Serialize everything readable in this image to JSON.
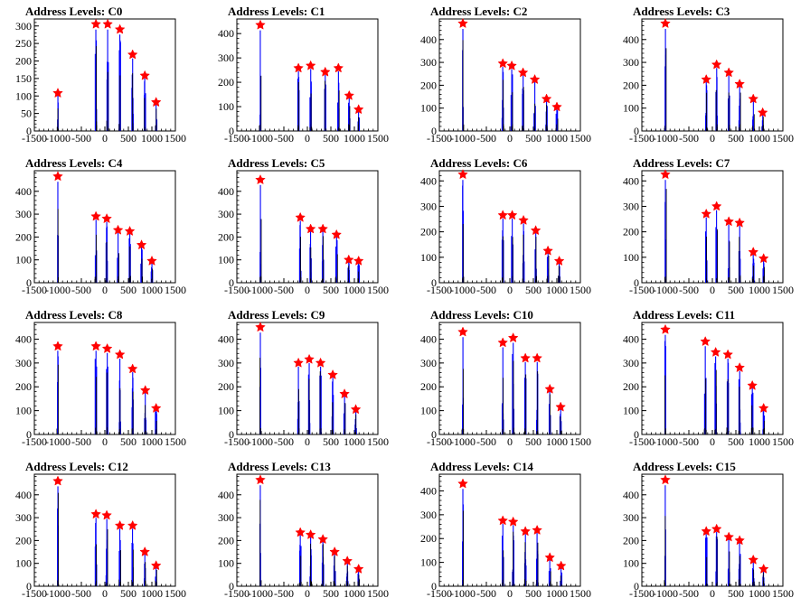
{
  "colors": {
    "histogram": "#0000ff",
    "overlay": "#000000",
    "marker": "#ff0000"
  },
  "marker_icon": "red-star-marker",
  "x_ticks": [
    -1500,
    -1000,
    -500,
    0,
    500,
    1000,
    1500
  ],
  "x_tick_labels": [
    "-1500",
    "-1000",
    "-500",
    "0",
    "500",
    "1000",
    "1500"
  ],
  "xlim": [
    -1500,
    1500
  ],
  "chart_data": [
    {
      "type": "bar",
      "title": "Address Levels: C0",
      "xlabel": "",
      "ylabel": "",
      "xlim": [
        -1500,
        1500
      ],
      "ylim": [
        0,
        320
      ],
      "y_ticks": [
        0,
        50,
        100,
        150,
        200,
        250,
        300
      ],
      "y_tick_labels": [
        "0",
        "50",
        "100",
        "150",
        "200",
        "250",
        "300"
      ],
      "peaks": [
        {
          "x": -1000,
          "y": 108
        },
        {
          "x": -190,
          "y": 305
        },
        {
          "x": 60,
          "y": 305
        },
        {
          "x": 320,
          "y": 290
        },
        {
          "x": 590,
          "y": 218
        },
        {
          "x": 850,
          "y": 158
        },
        {
          "x": 1090,
          "y": 82
        }
      ]
    },
    {
      "type": "bar",
      "title": "Address Levels: C1",
      "xlabel": "",
      "ylabel": "",
      "xlim": [
        -1500,
        1500
      ],
      "ylim": [
        0,
        460
      ],
      "y_ticks": [
        0,
        100,
        200,
        300,
        400
      ],
      "y_tick_labels": [
        "0",
        "100",
        "200",
        "300",
        "400"
      ],
      "peaks": [
        {
          "x": -1000,
          "y": 435
        },
        {
          "x": -190,
          "y": 258
        },
        {
          "x": 70,
          "y": 268
        },
        {
          "x": 380,
          "y": 242
        },
        {
          "x": 660,
          "y": 258
        },
        {
          "x": 890,
          "y": 145
        },
        {
          "x": 1090,
          "y": 88
        }
      ]
    },
    {
      "type": "bar",
      "title": "Address Levels: C2",
      "xlabel": "",
      "ylabel": "",
      "xlim": [
        -1500,
        1500
      ],
      "ylim": [
        0,
        490
      ],
      "y_ticks": [
        0,
        100,
        200,
        300,
        400
      ],
      "y_tick_labels": [
        "0",
        "100",
        "200",
        "300",
        "400"
      ],
      "peaks": [
        {
          "x": -1000,
          "y": 470
        },
        {
          "x": -150,
          "y": 295
        },
        {
          "x": 40,
          "y": 285
        },
        {
          "x": 280,
          "y": 255
        },
        {
          "x": 530,
          "y": 225
        },
        {
          "x": 780,
          "y": 140
        },
        {
          "x": 1000,
          "y": 105
        }
      ]
    },
    {
      "type": "bar",
      "title": "Address Levels: C3",
      "xlabel": "",
      "ylabel": "",
      "xlim": [
        -1500,
        1500
      ],
      "ylim": [
        0,
        490
      ],
      "y_ticks": [
        0,
        100,
        200,
        300,
        400
      ],
      "y_tick_labels": [
        "0",
        "100",
        "200",
        "300",
        "400"
      ],
      "peaks": [
        {
          "x": -1000,
          "y": 470
        },
        {
          "x": -130,
          "y": 225
        },
        {
          "x": 90,
          "y": 290
        },
        {
          "x": 350,
          "y": 255
        },
        {
          "x": 580,
          "y": 205
        },
        {
          "x": 870,
          "y": 140
        },
        {
          "x": 1070,
          "y": 80
        }
      ]
    },
    {
      "type": "bar",
      "title": "Address Levels: C4",
      "xlabel": "",
      "ylabel": "",
      "xlim": [
        -1500,
        1500
      ],
      "ylim": [
        0,
        490
      ],
      "y_ticks": [
        0,
        100,
        200,
        300,
        400
      ],
      "y_tick_labels": [
        "0",
        "100",
        "200",
        "300",
        "400"
      ],
      "peaks": [
        {
          "x": -1000,
          "y": 465
        },
        {
          "x": -190,
          "y": 290
        },
        {
          "x": 40,
          "y": 280
        },
        {
          "x": 280,
          "y": 230
        },
        {
          "x": 530,
          "y": 225
        },
        {
          "x": 780,
          "y": 165
        },
        {
          "x": 1000,
          "y": 95
        }
      ]
    },
    {
      "type": "bar",
      "title": "Address Levels: C5",
      "xlabel": "",
      "ylabel": "",
      "xlim": [
        -1500,
        1500
      ],
      "ylim": [
        0,
        490
      ],
      "y_ticks": [
        0,
        100,
        200,
        300,
        400
      ],
      "y_tick_labels": [
        "0",
        "100",
        "200",
        "300",
        "400"
      ],
      "peaks": [
        {
          "x": -1000,
          "y": 450
        },
        {
          "x": -150,
          "y": 285
        },
        {
          "x": 70,
          "y": 235
        },
        {
          "x": 330,
          "y": 235
        },
        {
          "x": 620,
          "y": 210
        },
        {
          "x": 880,
          "y": 100
        },
        {
          "x": 1090,
          "y": 95
        }
      ]
    },
    {
      "type": "bar",
      "title": "Address Levels: C6",
      "xlabel": "",
      "ylabel": "",
      "xlim": [
        -1500,
        1500
      ],
      "ylim": [
        0,
        440
      ],
      "y_ticks": [
        0,
        100,
        200,
        300,
        400
      ],
      "y_tick_labels": [
        "0",
        "100",
        "200",
        "300",
        "400"
      ],
      "peaks": [
        {
          "x": -1000,
          "y": 425
        },
        {
          "x": -150,
          "y": 265
        },
        {
          "x": 50,
          "y": 265
        },
        {
          "x": 290,
          "y": 245
        },
        {
          "x": 550,
          "y": 205
        },
        {
          "x": 810,
          "y": 125
        },
        {
          "x": 1050,
          "y": 85
        }
      ]
    },
    {
      "type": "bar",
      "title": "Address Levels: C7",
      "xlabel": "",
      "ylabel": "",
      "xlim": [
        -1500,
        1500
      ],
      "ylim": [
        0,
        440
      ],
      "y_ticks": [
        0,
        100,
        200,
        300,
        400
      ],
      "y_tick_labels": [
        "0",
        "100",
        "200",
        "300",
        "400"
      ],
      "peaks": [
        {
          "x": -1000,
          "y": 425
        },
        {
          "x": -130,
          "y": 270
        },
        {
          "x": 90,
          "y": 300
        },
        {
          "x": 350,
          "y": 240
        },
        {
          "x": 580,
          "y": 235
        },
        {
          "x": 870,
          "y": 120
        },
        {
          "x": 1090,
          "y": 95
        }
      ]
    },
    {
      "type": "bar",
      "title": "Address Levels: C8",
      "xlabel": "",
      "ylabel": "",
      "xlim": [
        -1500,
        1500
      ],
      "ylim": [
        0,
        470
      ],
      "y_ticks": [
        0,
        100,
        200,
        300,
        400
      ],
      "y_tick_labels": [
        "0",
        "100",
        "200",
        "300",
        "400"
      ],
      "peaks": [
        {
          "x": -1000,
          "y": 370
        },
        {
          "x": -190,
          "y": 370
        },
        {
          "x": 50,
          "y": 360
        },
        {
          "x": 320,
          "y": 335
        },
        {
          "x": 590,
          "y": 275
        },
        {
          "x": 860,
          "y": 185
        },
        {
          "x": 1090,
          "y": 110
        }
      ]
    },
    {
      "type": "bar",
      "title": "Address Levels: C9",
      "xlabel": "",
      "ylabel": "",
      "xlim": [
        -1500,
        1500
      ],
      "ylim": [
        0,
        470
      ],
      "y_ticks": [
        0,
        100,
        200,
        300,
        400
      ],
      "y_tick_labels": [
        "0",
        "100",
        "200",
        "300",
        "400"
      ],
      "peaks": [
        {
          "x": -1000,
          "y": 450
        },
        {
          "x": -190,
          "y": 300
        },
        {
          "x": 40,
          "y": 315
        },
        {
          "x": 280,
          "y": 300
        },
        {
          "x": 540,
          "y": 250
        },
        {
          "x": 790,
          "y": 170
        },
        {
          "x": 1030,
          "y": 105
        }
      ]
    },
    {
      "type": "bar",
      "title": "Address Levels: C10",
      "xlabel": "",
      "ylabel": "",
      "xlim": [
        -1500,
        1500
      ],
      "ylim": [
        0,
        470
      ],
      "y_ticks": [
        0,
        100,
        200,
        300,
        400
      ],
      "y_tick_labels": [
        "0",
        "100",
        "200",
        "300",
        "400"
      ],
      "peaks": [
        {
          "x": -1000,
          "y": 430
        },
        {
          "x": -150,
          "y": 385
        },
        {
          "x": 70,
          "y": 405
        },
        {
          "x": 330,
          "y": 320
        },
        {
          "x": 580,
          "y": 320
        },
        {
          "x": 850,
          "y": 190
        },
        {
          "x": 1080,
          "y": 115
        }
      ]
    },
    {
      "type": "bar",
      "title": "Address Levels: C11",
      "xlabel": "",
      "ylabel": "",
      "xlim": [
        -1500,
        1500
      ],
      "ylim": [
        0,
        470
      ],
      "y_ticks": [
        0,
        100,
        200,
        300,
        400
      ],
      "y_tick_labels": [
        "0",
        "100",
        "200",
        "300",
        "400"
      ],
      "peaks": [
        {
          "x": -1000,
          "y": 440
        },
        {
          "x": -150,
          "y": 390
        },
        {
          "x": 70,
          "y": 345
        },
        {
          "x": 330,
          "y": 335
        },
        {
          "x": 580,
          "y": 280
        },
        {
          "x": 850,
          "y": 205
        },
        {
          "x": 1090,
          "y": 110
        }
      ]
    },
    {
      "type": "bar",
      "title": "Address Levels: C12",
      "xlabel": "",
      "ylabel": "",
      "xlim": [
        -1500,
        1500
      ],
      "ylim": [
        0,
        490
      ],
      "y_ticks": [
        0,
        100,
        200,
        300,
        400
      ],
      "y_tick_labels": [
        "0",
        "100",
        "200",
        "300",
        "400"
      ],
      "peaks": [
        {
          "x": -1000,
          "y": 460
        },
        {
          "x": -190,
          "y": 315
        },
        {
          "x": 40,
          "y": 310
        },
        {
          "x": 320,
          "y": 265
        },
        {
          "x": 590,
          "y": 265
        },
        {
          "x": 850,
          "y": 150
        },
        {
          "x": 1090,
          "y": 90
        }
      ]
    },
    {
      "type": "bar",
      "title": "Address Levels: C13",
      "xlabel": "",
      "ylabel": "",
      "xlim": [
        -1500,
        1500
      ],
      "ylim": [
        0,
        490
      ],
      "y_ticks": [
        0,
        100,
        200,
        300,
        400
      ],
      "y_tick_labels": [
        "0",
        "100",
        "200",
        "300",
        "400"
      ],
      "peaks": [
        {
          "x": -1000,
          "y": 465
        },
        {
          "x": -150,
          "y": 235
        },
        {
          "x": 70,
          "y": 225
        },
        {
          "x": 330,
          "y": 205
        },
        {
          "x": 580,
          "y": 150
        },
        {
          "x": 850,
          "y": 110
        },
        {
          "x": 1090,
          "y": 75
        }
      ]
    },
    {
      "type": "bar",
      "title": "Address Levels: C14",
      "xlabel": "",
      "ylabel": "",
      "xlim": [
        -1500,
        1500
      ],
      "ylim": [
        0,
        470
      ],
      "y_ticks": [
        0,
        100,
        200,
        300,
        400
      ],
      "y_tick_labels": [
        "0",
        "100",
        "200",
        "300",
        "400"
      ],
      "peaks": [
        {
          "x": -1000,
          "y": 430
        },
        {
          "x": -150,
          "y": 275
        },
        {
          "x": 70,
          "y": 270
        },
        {
          "x": 330,
          "y": 230
        },
        {
          "x": 580,
          "y": 235
        },
        {
          "x": 850,
          "y": 120
        },
        {
          "x": 1090,
          "y": 85
        }
      ]
    },
    {
      "type": "bar",
      "title": "Address Levels: C15",
      "xlabel": "",
      "ylabel": "",
      "xlim": [
        -1500,
        1500
      ],
      "ylim": [
        0,
        490
      ],
      "y_ticks": [
        0,
        100,
        200,
        300,
        400
      ],
      "y_tick_labels": [
        "0",
        "100",
        "200",
        "300",
        "400"
      ],
      "peaks": [
        {
          "x": -1000,
          "y": 465
        },
        {
          "x": -130,
          "y": 240
        },
        {
          "x": 90,
          "y": 250
        },
        {
          "x": 350,
          "y": 215
        },
        {
          "x": 580,
          "y": 200
        },
        {
          "x": 870,
          "y": 115
        },
        {
          "x": 1090,
          "y": 75
        }
      ]
    }
  ]
}
